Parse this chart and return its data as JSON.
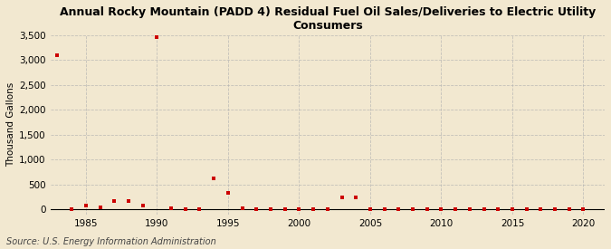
{
  "title": "Annual Rocky Mountain (PADD 4) Residual Fuel Oil Sales/Deliveries to Electric Utility\nConsumers",
  "ylabel": "Thousand Gallons",
  "source": "Source: U.S. Energy Information Administration",
  "background_color": "#f2e8d0",
  "plot_background_color": "#f2e8d0",
  "marker_color": "#cc0000",
  "marker": "s",
  "marker_size": 3.5,
  "xlim": [
    1982.5,
    2021.5
  ],
  "ylim": [
    -100,
    3500
  ],
  "yticks": [
    0,
    500,
    1000,
    1500,
    2000,
    2500,
    3000,
    3500
  ],
  "xticks": [
    1985,
    1990,
    1995,
    2000,
    2005,
    2010,
    2015,
    2020
  ],
  "years": [
    1983,
    1984,
    1985,
    1986,
    1987,
    1988,
    1989,
    1990,
    1991,
    1992,
    1993,
    1994,
    1995,
    1996,
    1997,
    1998,
    1999,
    2000,
    2001,
    2002,
    2003,
    2004,
    2005,
    2006,
    2007,
    2008,
    2009,
    2010,
    2011,
    2012,
    2013,
    2014,
    2015,
    2016,
    2017,
    2018,
    2019,
    2020
  ],
  "values": [
    3100,
    0,
    80,
    40,
    170,
    175,
    70,
    3470,
    15,
    10,
    10,
    620,
    330,
    20,
    10,
    10,
    10,
    10,
    10,
    10,
    240,
    240,
    10,
    10,
    10,
    10,
    10,
    10,
    10,
    10,
    10,
    10,
    10,
    10,
    10,
    10,
    10,
    10
  ],
  "title_fontsize": 9,
  "axis_fontsize": 7.5,
  "source_fontsize": 7,
  "grid_color": "#b0b0b0",
  "grid_alpha": 0.7
}
